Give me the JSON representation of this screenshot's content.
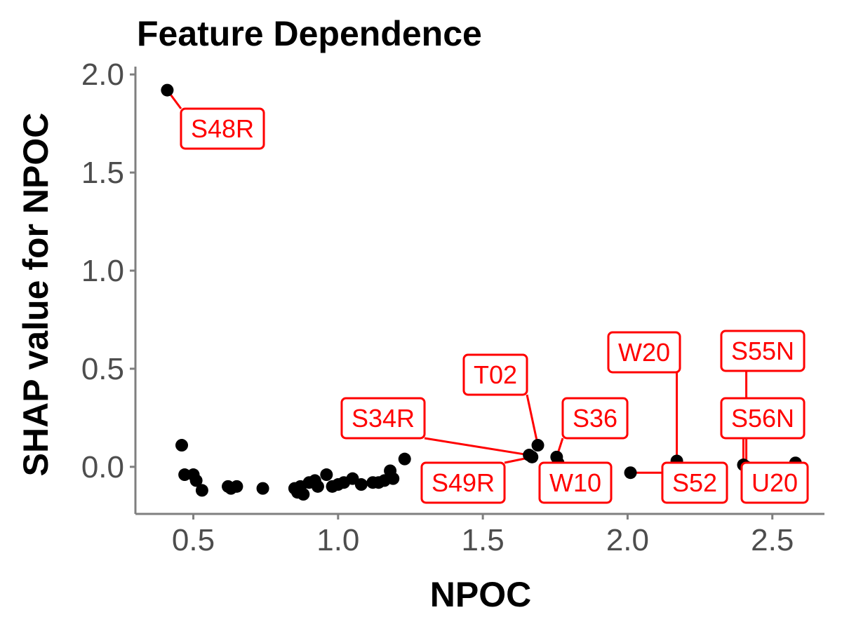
{
  "chart_data": {
    "type": "scatter",
    "title": "Feature Dependence",
    "xlabel": "NPOC",
    "ylabel": "SHAP value for NPOC",
    "xlim": [
      0.3,
      2.68
    ],
    "ylim": [
      -0.24,
      2.04
    ],
    "xticks": [
      "0.5",
      "1.0",
      "1.5",
      "2.0",
      "2.5"
    ],
    "yticks": [
      "0.0",
      "0.5",
      "1.0",
      "1.5",
      "2.0"
    ],
    "grid": false,
    "point_color": "#000000",
    "label_color": "#ff0000",
    "points": [
      {
        "x": 0.41,
        "y": 1.92,
        "label": "S48R"
      },
      {
        "x": 0.46,
        "y": 0.11
      },
      {
        "x": 0.47,
        "y": -0.04
      },
      {
        "x": 0.5,
        "y": -0.04
      },
      {
        "x": 0.51,
        "y": -0.07
      },
      {
        "x": 0.53,
        "y": -0.12
      },
      {
        "x": 0.62,
        "y": -0.1
      },
      {
        "x": 0.63,
        "y": -0.11
      },
      {
        "x": 0.65,
        "y": -0.1
      },
      {
        "x": 0.74,
        "y": -0.11
      },
      {
        "x": 0.85,
        "y": -0.11
      },
      {
        "x": 0.86,
        "y": -0.13
      },
      {
        "x": 0.87,
        "y": -0.1
      },
      {
        "x": 0.88,
        "y": -0.14
      },
      {
        "x": 0.9,
        "y": -0.08
      },
      {
        "x": 0.92,
        "y": -0.07
      },
      {
        "x": 0.93,
        "y": -0.1
      },
      {
        "x": 0.96,
        "y": -0.04
      },
      {
        "x": 0.98,
        "y": -0.1
      },
      {
        "x": 1.0,
        "y": -0.09
      },
      {
        "x": 1.02,
        "y": -0.08
      },
      {
        "x": 1.05,
        "y": -0.06
      },
      {
        "x": 1.08,
        "y": -0.09
      },
      {
        "x": 1.12,
        "y": -0.08
      },
      {
        "x": 1.14,
        "y": -0.08
      },
      {
        "x": 1.16,
        "y": -0.07
      },
      {
        "x": 1.18,
        "y": -0.02
      },
      {
        "x": 1.19,
        "y": -0.06
      },
      {
        "x": 1.23,
        "y": 0.04
      },
      {
        "x": 1.66,
        "y": 0.06,
        "label": "S34R"
      },
      {
        "x": 1.67,
        "y": 0.05,
        "label": "S49R"
      },
      {
        "x": 1.69,
        "y": 0.11,
        "label": "T02"
      },
      {
        "x": 1.755,
        "y": 0.05,
        "label": "S36"
      },
      {
        "x": 1.76,
        "y": 0.02,
        "label": "W10"
      },
      {
        "x": 2.01,
        "y": -0.03,
        "label": "S52"
      },
      {
        "x": 2.17,
        "y": 0.03,
        "label": "W20"
      },
      {
        "x": 2.4,
        "y": 0.01,
        "label": "S56N"
      },
      {
        "x": 2.41,
        "y": 0.0,
        "label": "S55N"
      },
      {
        "x": 2.58,
        "y": 0.02,
        "label": "U20"
      }
    ]
  }
}
